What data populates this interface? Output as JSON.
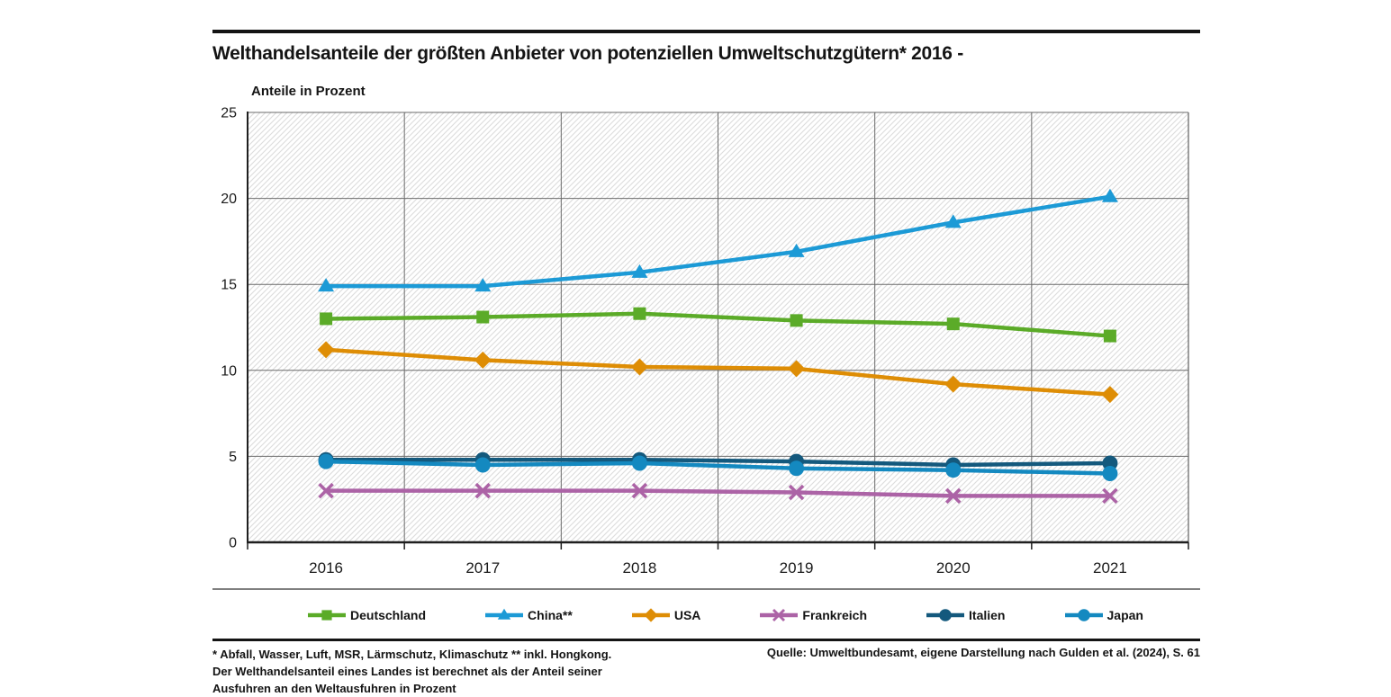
{
  "header": {
    "title": "Welthandelsanteile der größten Anbieter von potenziellen Umweltschutzgütern* 2016 -",
    "axis_title": "Anteile in Prozent"
  },
  "chart_data": {
    "type": "line",
    "title": "Welthandelsanteile der größten Anbieter von potenziellen Umweltschutzgütern* 2016 -",
    "xlabel": "",
    "ylabel": "Anteile in Prozent",
    "categories": [
      "2016",
      "2017",
      "2018",
      "2019",
      "2020",
      "2021"
    ],
    "ylim": [
      0,
      25
    ],
    "yticks": [
      0,
      5,
      10,
      15,
      20,
      25
    ],
    "grid": true,
    "plot_background": "diagonal-hatch",
    "legend_position": "bottom",
    "series": [
      {
        "name": "Deutschland",
        "marker": "square",
        "color": "#5BAB28",
        "values": [
          13.0,
          13.1,
          13.3,
          12.9,
          12.7,
          12.0
        ]
      },
      {
        "name": "China**",
        "marker": "triangle",
        "color": "#1C9AD6",
        "values": [
          14.9,
          14.9,
          15.7,
          16.9,
          18.6,
          20.1
        ]
      },
      {
        "name": "USA",
        "marker": "diamond",
        "color": "#DE8D05",
        "values": [
          11.2,
          10.6,
          10.2,
          10.1,
          9.2,
          8.6
        ]
      },
      {
        "name": "Frankreich",
        "marker": "x",
        "color": "#AC63A6",
        "values": [
          3.0,
          3.0,
          3.0,
          2.9,
          2.7,
          2.7
        ]
      },
      {
        "name": "Italien",
        "marker": "circle",
        "color": "#14597D",
        "values": [
          4.8,
          4.8,
          4.8,
          4.7,
          4.5,
          4.6
        ]
      },
      {
        "name": "Japan",
        "marker": "circle",
        "color": "#1489C0",
        "values": [
          4.7,
          4.5,
          4.6,
          4.3,
          4.2,
          4.0
        ]
      }
    ]
  },
  "footnotes": {
    "line1": "* Abfall, Wasser, Luft, MSR, Lärmschutz, Klimaschutz ** inkl. Hongkong.",
    "line2": "Der Welthandelsanteil eines Landes ist berechnet als der Anteil seiner",
    "line3": "Ausfuhren an den Weltausfuhren in Prozent",
    "source": "Quelle: Umweltbundesamt, eigene Darstellung nach Gulden et al. (2024), S. 61"
  },
  "style_colors": {
    "rule_dark": "#141414",
    "rule_gray": "#7f7f7f",
    "gridline": "#6b6b6b",
    "axis": "#1f1f1f",
    "hatch_line": "#dcdcdc"
  }
}
